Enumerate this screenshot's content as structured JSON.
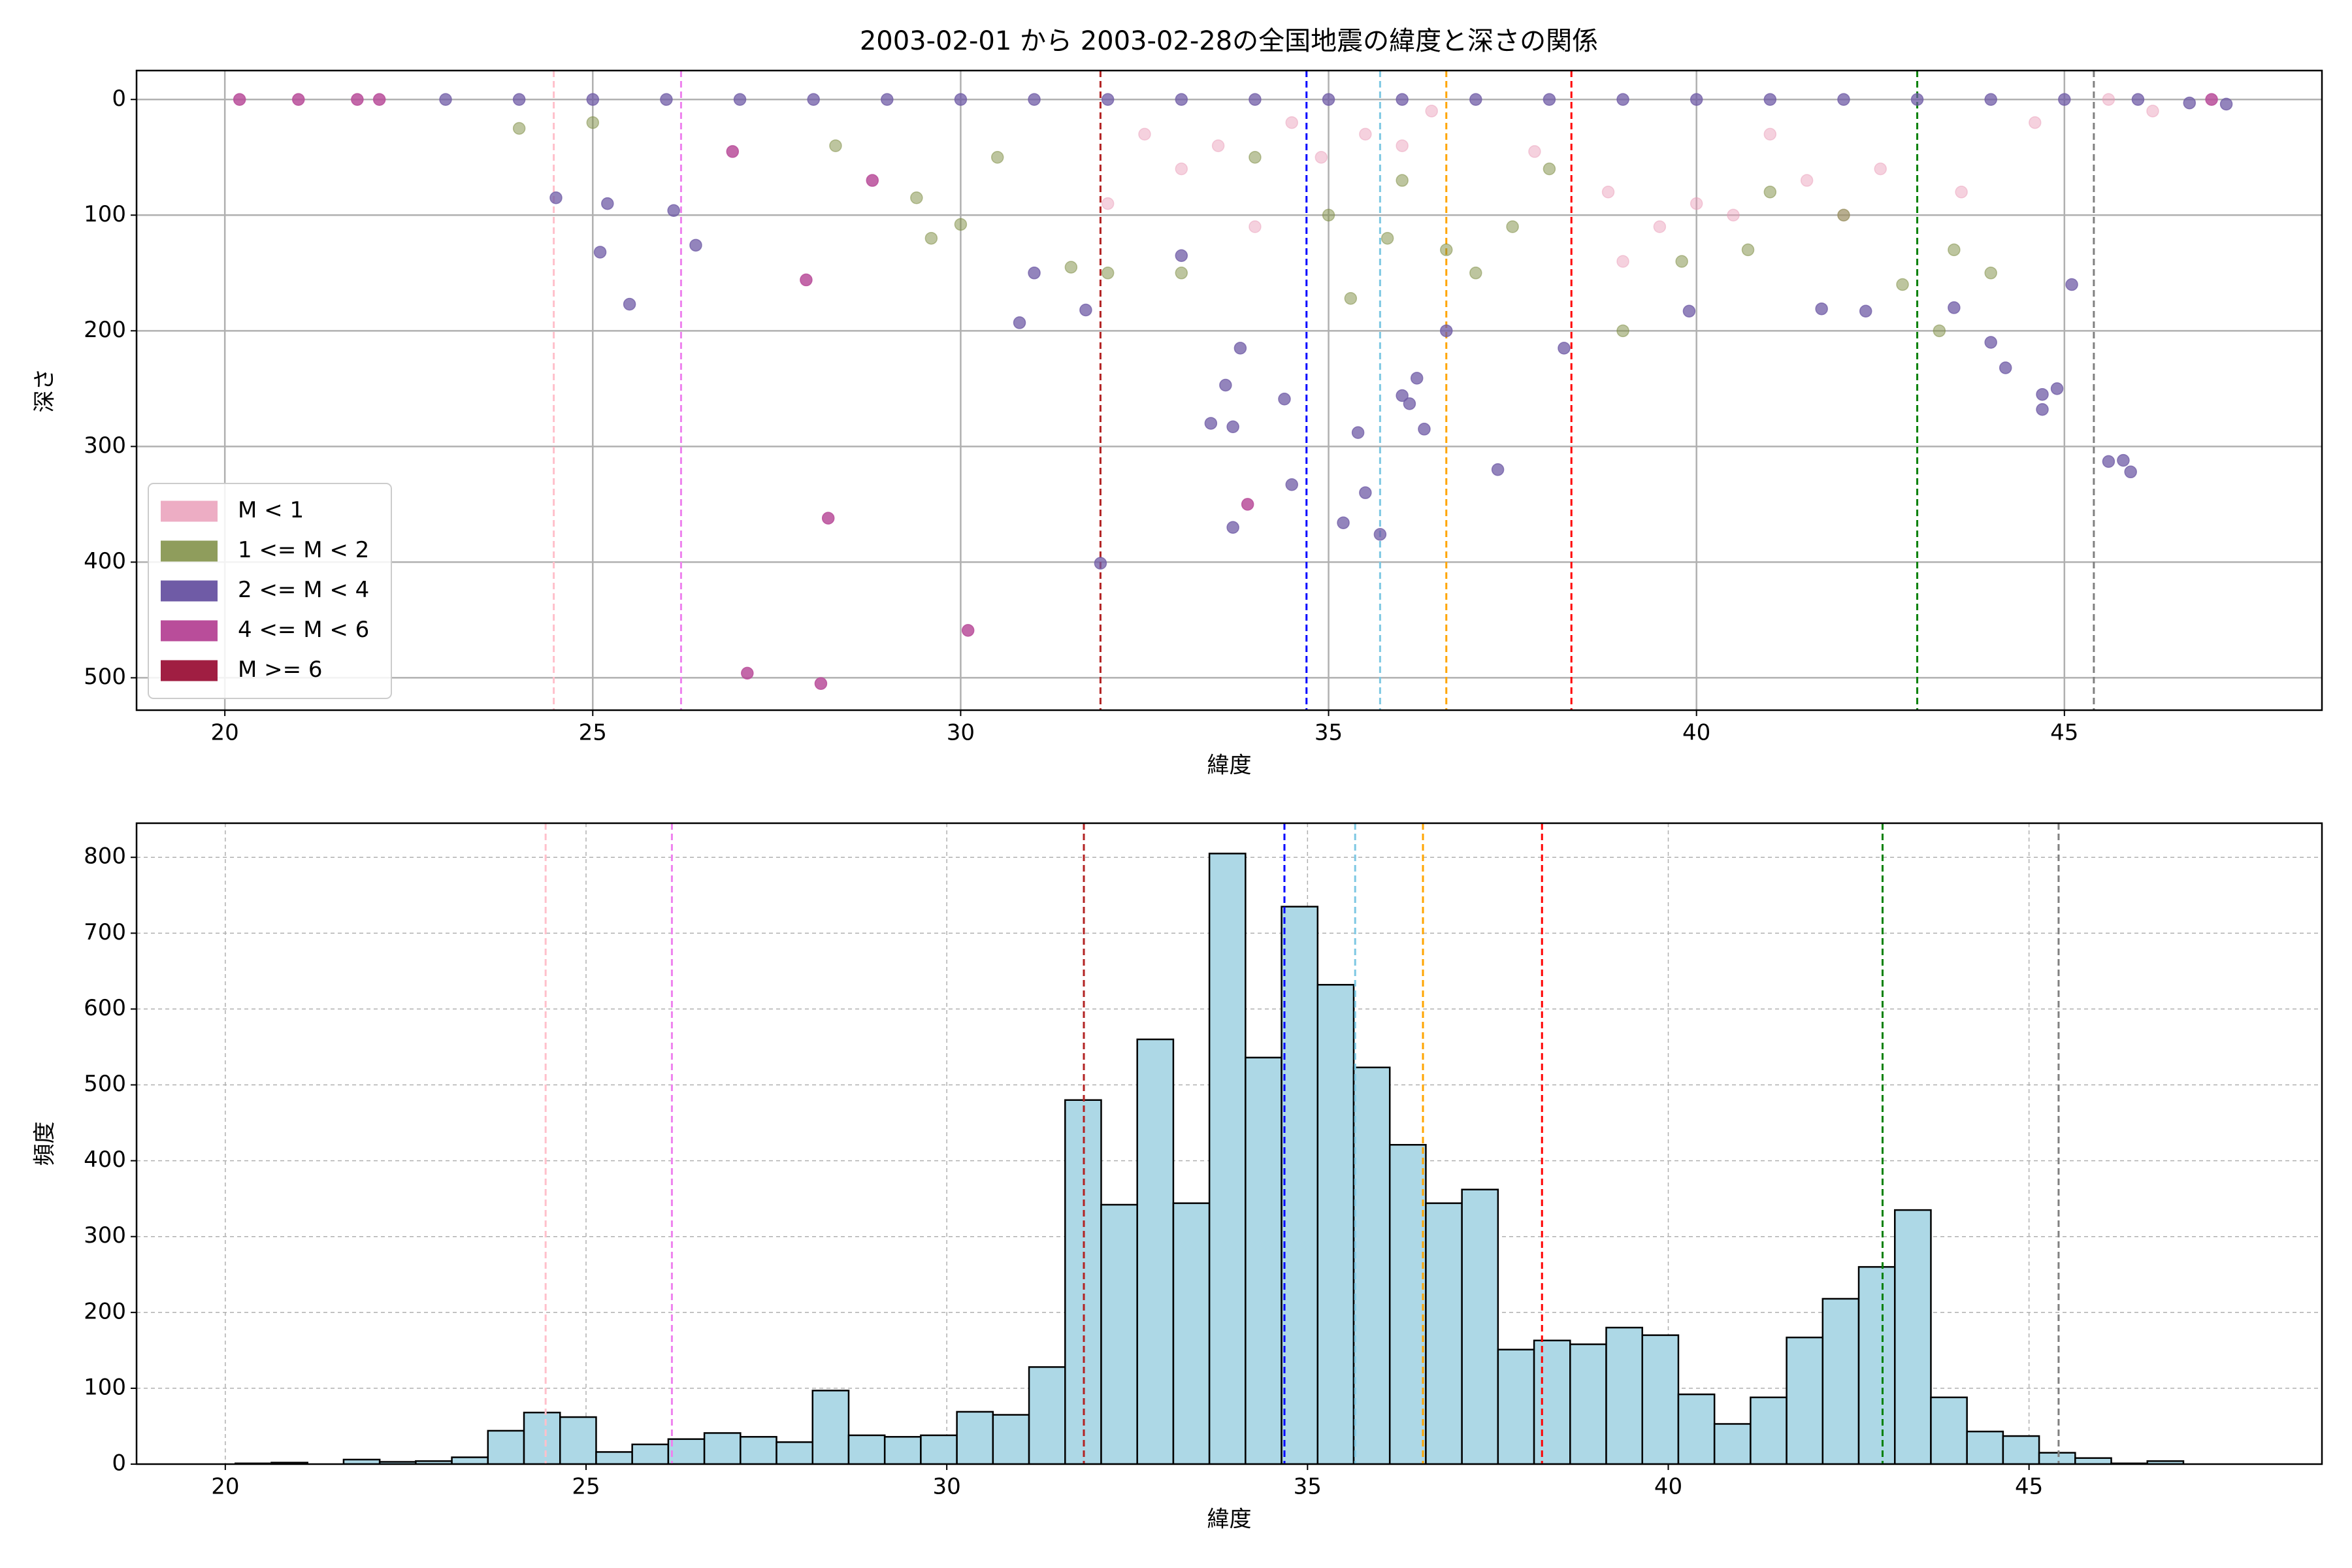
{
  "chart_data": [
    {
      "type": "scatter",
      "title": "2003-02-01 から 2003-02-28の全国地震の緯度と深さの関係",
      "x_label": "緯度",
      "y_label": "深さ",
      "xlim": [
        18.8,
        48.5
      ],
      "xticks": [
        20,
        25,
        30,
        35,
        40,
        45
      ],
      "ylim": [
        -25,
        528
      ],
      "yticks": [
        0,
        100,
        200,
        300,
        400,
        500
      ],
      "y_inverted": true,
      "grid": true,
      "grid_linestyle": "solid",
      "legend": "lower left",
      "vlines": [
        {
          "x": 24.47,
          "color": "pink"
        },
        {
          "x": 26.2,
          "color": "violet"
        },
        {
          "x": 31.9,
          "color": "#b22222"
        },
        {
          "x": 34.7,
          "color": "blue"
        },
        {
          "x": 35.7,
          "color": "#7ec8e3"
        },
        {
          "x": 36.6,
          "color": "orange"
        },
        {
          "x": 38.3,
          "color": "red"
        },
        {
          "x": 43.0,
          "color": "green"
        },
        {
          "x": 45.4,
          "color": "gray"
        }
      ],
      "series": [
        {
          "name": "M < 1",
          "color": "#e899b5",
          "alpha": 0.45,
          "x": [
            32.5,
            33.5,
            34.5,
            35.5,
            36.0,
            38.8,
            39.5,
            40.5,
            41.5,
            42.5,
            44.6,
            45.6,
            32.0,
            34.0,
            39.0,
            33.0,
            34.9,
            36.4,
            37.8,
            40.0,
            41.0,
            42.0,
            43.6,
            46.2
          ],
          "values": [
            30,
            40,
            20,
            30,
            40,
            80,
            110,
            100,
            70,
            60,
            20,
            0,
            90,
            110,
            140,
            60,
            50,
            10,
            45,
            90,
            30,
            100,
            80,
            10
          ]
        },
        {
          "name": "1 <= M < 2",
          "color": "#7b8c3f",
          "alpha": 0.5,
          "x": [
            28.3,
            29.4,
            29.6,
            30.0,
            35.3,
            36.6,
            39.0,
            40.7,
            43.3,
            30.5,
            32.0,
            33.0,
            37.0,
            24.0,
            35.0,
            38.0,
            41.0,
            42.0,
            43.5,
            34.0,
            36.0,
            25.0,
            31.5,
            35.8,
            37.5,
            39.8,
            42.8,
            44.0
          ],
          "values": [
            40,
            85,
            120,
            108,
            172,
            130,
            200,
            130,
            200,
            50,
            150,
            150,
            150,
            25,
            100,
            60,
            80,
            100,
            130,
            50,
            70,
            20,
            145,
            120,
            110,
            140,
            160,
            150
          ]
        },
        {
          "name": "2 <= M < 4",
          "color": "#6f5ba6",
          "alpha": 0.75,
          "x": [
            31.9,
            33.7,
            34.5,
            35.2,
            35.7,
            35.5,
            37.3,
            45.6,
            45.8,
            45.9,
            44.9,
            44.7,
            44.7,
            45.1,
            38.2,
            36.3,
            35.4,
            34.4,
            33.4,
            33.7,
            33.8,
            33.6,
            36.1,
            36.2,
            36.0,
            26.4,
            25.1,
            25.5,
            26.1,
            33.0,
            30.8,
            31.7,
            36.6,
            39.9,
            44.2,
            42.3,
            41.7,
            23.0,
            24.0,
            25.0,
            26.0,
            27.0,
            28.0,
            29.0,
            30.0,
            31.0,
            32.0,
            33.0,
            34.0,
            35.0,
            36.0,
            37.0,
            38.0,
            39.0,
            40.0,
            41.0,
            42.0,
            43.0,
            44.0,
            45.0,
            46.0,
            46.7,
            47.2,
            24.5,
            25.2,
            31.0,
            43.5,
            44.0
          ],
          "values": [
            401,
            370,
            333,
            366,
            376,
            340,
            320,
            313,
            312,
            322,
            250,
            255,
            268,
            160,
            215,
            285,
            288,
            259,
            280,
            283,
            215,
            247,
            263,
            241,
            256,
            126,
            132,
            177,
            96,
            135,
            193,
            182,
            200,
            183,
            232,
            183,
            181,
            0,
            0,
            0,
            0,
            0,
            0,
            0,
            0,
            0,
            0,
            0,
            0,
            0,
            0,
            0,
            0,
            0,
            0,
            0,
            0,
            0,
            0,
            0,
            0,
            3,
            4,
            85,
            90,
            150,
            180,
            210
          ]
        },
        {
          "name": "4 <= M < 6",
          "color": "#b94d9a",
          "alpha": 0.85,
          "x": [
            20.2,
            21.0,
            21.8,
            22.1,
            27.9,
            28.2,
            27.1,
            28.1,
            30.1,
            28.8,
            33.9,
            26.9,
            47.0
          ],
          "values": [
            0,
            0,
            0,
            0,
            156,
            362,
            496,
            505,
            459,
            70,
            350,
            45,
            0
          ]
        },
        {
          "name": "M >= 6",
          "color": "#a01e42",
          "alpha": 0.85,
          "x": [],
          "values": []
        }
      ]
    },
    {
      "type": "histogram",
      "x_label": "緯度",
      "y_label": "頻度",
      "xlim": [
        18.77,
        49.06
      ],
      "xticks": [
        20,
        25,
        30,
        35,
        40,
        45
      ],
      "ylim": [
        0,
        845
      ],
      "yticks": [
        0,
        100,
        200,
        300,
        400,
        500,
        600,
        700,
        800
      ],
      "grid": true,
      "grid_linestyle": "dashed",
      "color": "#add8e6",
      "edgecolor": "#000000",
      "vlines": [
        {
          "x": 24.44,
          "color": "pink"
        },
        {
          "x": 26.19,
          "color": "violet"
        },
        {
          "x": 31.9,
          "color": "#b22222"
        },
        {
          "x": 34.68,
          "color": "blue"
        },
        {
          "x": 35.66,
          "color": "#7ec8e3"
        },
        {
          "x": 36.6,
          "color": "orange"
        },
        {
          "x": 38.25,
          "color": "red"
        },
        {
          "x": 42.97,
          "color": "green"
        },
        {
          "x": 45.41,
          "color": "gray"
        }
      ],
      "bins": [
        20.14,
        20.64,
        21.14,
        21.64,
        22.14,
        22.64,
        23.14,
        23.64,
        24.14,
        24.64,
        25.14,
        25.64,
        26.14,
        26.64,
        27.14,
        27.64,
        28.14,
        28.64,
        29.14,
        29.64,
        30.14,
        30.64,
        31.14,
        31.64,
        32.14,
        32.64,
        33.14,
        33.64,
        34.14,
        34.64,
        35.14,
        35.64,
        36.14,
        36.64,
        37.14,
        37.64,
        38.14,
        38.64,
        39.14,
        39.64,
        40.14,
        40.64,
        41.14,
        41.64,
        42.14,
        42.64,
        43.14,
        43.64,
        44.14,
        44.64,
        45.14,
        45.64,
        46.14,
        46.64,
        47.14
      ],
      "values": [
        1,
        2,
        0,
        6,
        3,
        4,
        9,
        44,
        68,
        62,
        16,
        26,
        33,
        41,
        36,
        29,
        97,
        38,
        36,
        38,
        69,
        65,
        128,
        480,
        342,
        560,
        344,
        805,
        536,
        735,
        632,
        523,
        421,
        344,
        362,
        151,
        163,
        158,
        180,
        170,
        92,
        53,
        88,
        167,
        218,
        260,
        335,
        88,
        43,
        37,
        15,
        8,
        1,
        4
      ]
    }
  ]
}
